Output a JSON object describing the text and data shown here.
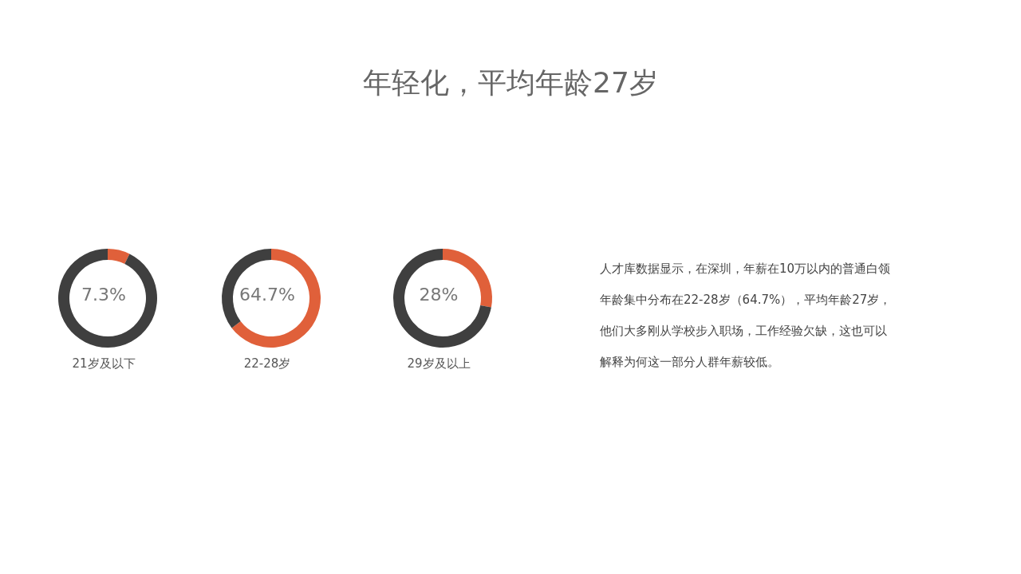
{
  "chart_data": [
    {
      "type": "donut",
      "title": "年轻化，平均年龄27岁",
      "xlabel": "21岁及以下",
      "categories": [
        null,
        null
      ],
      "values": [
        7.3,
        92.7
      ],
      "colors": [
        "#e0603a",
        "#3f3f3f"
      ],
      "annotations": [
        "7.3%"
      ]
    },
    {
      "type": "donut",
      "xlabel": "22-28岁",
      "categories": [
        null,
        null
      ],
      "values": [
        64.7,
        35.3
      ],
      "colors": [
        "#e0603a",
        "#3f3f3f"
      ],
      "annotations": [
        "64.7%"
      ]
    },
    {
      "type": "donut",
      "xlabel": "29岁及以上",
      "categories": [
        null,
        null
      ],
      "values": [
        28,
        72
      ],
      "colors": [
        "#e0603a",
        "#3f3f3f"
      ],
      "annotations": [
        "28%"
      ]
    },
    {
      "type": "other",
      "annotations": [
        "人才库数据显示，在深圳，年薪在10万以内的普通白领年龄集中分布在22-28岁（64.7%），平均年龄27岁，他们大多刚从学校步入职场，工作经验欠缺，这也可以解释为何这一部分人群年薪较低。"
      ]
    }
  ]
}
